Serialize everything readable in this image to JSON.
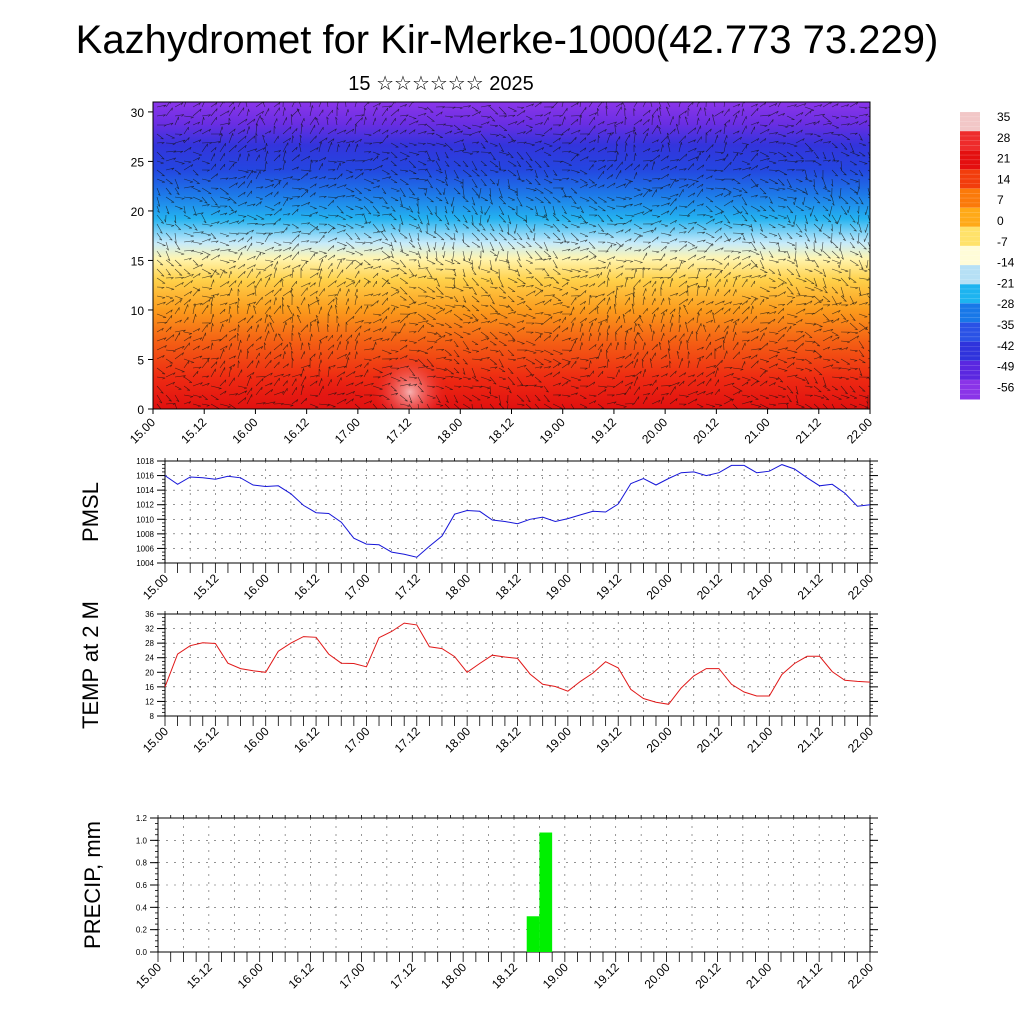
{
  "title": "Kazhydromet for Kir-Merke-1000(42.773 73.229)",
  "subtitle": "15 ☆☆☆☆☆☆ 2025",
  "time_labels": [
    "15.00",
    "15.12",
    "16.00",
    "16.12",
    "17.00",
    "17.12",
    "18.00",
    "18.12",
    "19.00",
    "19.12",
    "20.00",
    "20.12",
    "21.00",
    "21.12",
    "22.00"
  ],
  "chart_data": [
    {
      "type": "heatmap",
      "title": "",
      "y_ticks": [
        0,
        5,
        10,
        15,
        20,
        25,
        30
      ],
      "ylim": [
        0,
        31
      ],
      "colorbar_labels": [
        "35",
        "28",
        "21",
        "14",
        "7",
        "0",
        "-7",
        "-14",
        "-21",
        "-28",
        "-35",
        "-42",
        "-49",
        "-56"
      ],
      "colorbar_colors": [
        "#f2c7c7",
        "#ee2b2b",
        "#e40f0f",
        "#f23d0c",
        "#fb7a0a",
        "#ffaa18",
        "#ffe26a",
        "#fffcd8",
        "#b6e0f5",
        "#1db4f0",
        "#1878e8",
        "#2a52e6",
        "#2f33dc",
        "#5a27e0",
        "#8a34e8"
      ],
      "has_wind_vectors": true
    },
    {
      "type": "line",
      "ylabel": "PMSL",
      "y_ticks": [
        1004,
        1006,
        1008,
        1010,
        1012,
        1014,
        1016,
        1018
      ],
      "ylim": [
        1004,
        1018
      ],
      "color": "#1616d8",
      "x": [
        0,
        3,
        6,
        9,
        12,
        15,
        18,
        21,
        24,
        27,
        30,
        33,
        36,
        39,
        42,
        45,
        48,
        51,
        54,
        57,
        60,
        63,
        66,
        69,
        72,
        75,
        78,
        81,
        84,
        87,
        90,
        93,
        96,
        99,
        102,
        105,
        108,
        111,
        114,
        117,
        120,
        123,
        126,
        129,
        132,
        135,
        138,
        141,
        144,
        147,
        150,
        153,
        156,
        159,
        162,
        165,
        168
      ],
      "values": [
        1016.0,
        1014.8,
        1015.8,
        1015.7,
        1015.5,
        1015.9,
        1015.7,
        1014.7,
        1014.5,
        1014.6,
        1013.5,
        1011.9,
        1010.9,
        1010.8,
        1009.6,
        1007.4,
        1006.6,
        1006.5,
        1005.5,
        1005.2,
        1004.8,
        1006.3,
        1007.7,
        1010.7,
        1011.2,
        1011.1,
        1009.9,
        1009.7,
        1009.4,
        1010.0,
        1010.3,
        1009.7,
        1010.1,
        1010.6,
        1011.1,
        1011.0,
        1012.1,
        1014.9,
        1015.6,
        1014.7,
        1015.6,
        1016.4,
        1016.5,
        1016.0,
        1016.4,
        1017.4,
        1017.4,
        1016.4,
        1016.6,
        1017.5,
        1016.9,
        1015.7,
        1014.6,
        1014.8,
        1013.6,
        1011.8,
        1012.0
      ]
    },
    {
      "type": "line",
      "ylabel": "TEMP at 2 M",
      "y_ticks": [
        8,
        12,
        16,
        20,
        24,
        28,
        32,
        36
      ],
      "ylim": [
        8,
        36
      ],
      "color": "#e01818",
      "x": [
        0,
        3,
        6,
        9,
        12,
        15,
        18,
        21,
        24,
        27,
        30,
        33,
        36,
        39,
        42,
        45,
        48,
        51,
        54,
        57,
        60,
        63,
        66,
        69,
        72,
        75,
        78,
        81,
        84,
        87,
        90,
        93,
        96,
        99,
        102,
        105,
        108,
        111,
        114,
        117,
        120,
        123,
        126,
        129,
        132,
        135,
        138,
        141,
        144,
        147,
        150,
        153,
        156,
        159,
        162,
        165,
        168
      ],
      "values": [
        16.0,
        25.0,
        27.3,
        28.1,
        27.9,
        22.5,
        21.0,
        20.4,
        20.0,
        25.8,
        28.0,
        29.8,
        29.6,
        25.0,
        22.5,
        22.4,
        21.5,
        29.5,
        31.2,
        33.5,
        33.0,
        27.0,
        26.5,
        24.3,
        20.0,
        22.4,
        24.7,
        24.2,
        23.8,
        19.5,
        16.7,
        16.1,
        14.8,
        17.5,
        19.8,
        22.9,
        21.2,
        15.3,
        12.8,
        11.8,
        11.2,
        15.7,
        19.0,
        21.0,
        21.0,
        16.7,
        14.6,
        13.5,
        13.5,
        19.4,
        22.4,
        24.4,
        24.4,
        20.2,
        17.8,
        17.5,
        17.3
      ]
    },
    {
      "type": "bar",
      "ylabel": "PRECIP, mm",
      "y_ticks": [
        "0.0",
        "0.2",
        "0.4",
        "0.6",
        "0.8",
        "1.0",
        "1.2"
      ],
      "ylim": [
        0,
        1.2
      ],
      "color": "#00f000",
      "x": [
        87,
        90
      ],
      "values": [
        0.32,
        1.07
      ]
    }
  ]
}
